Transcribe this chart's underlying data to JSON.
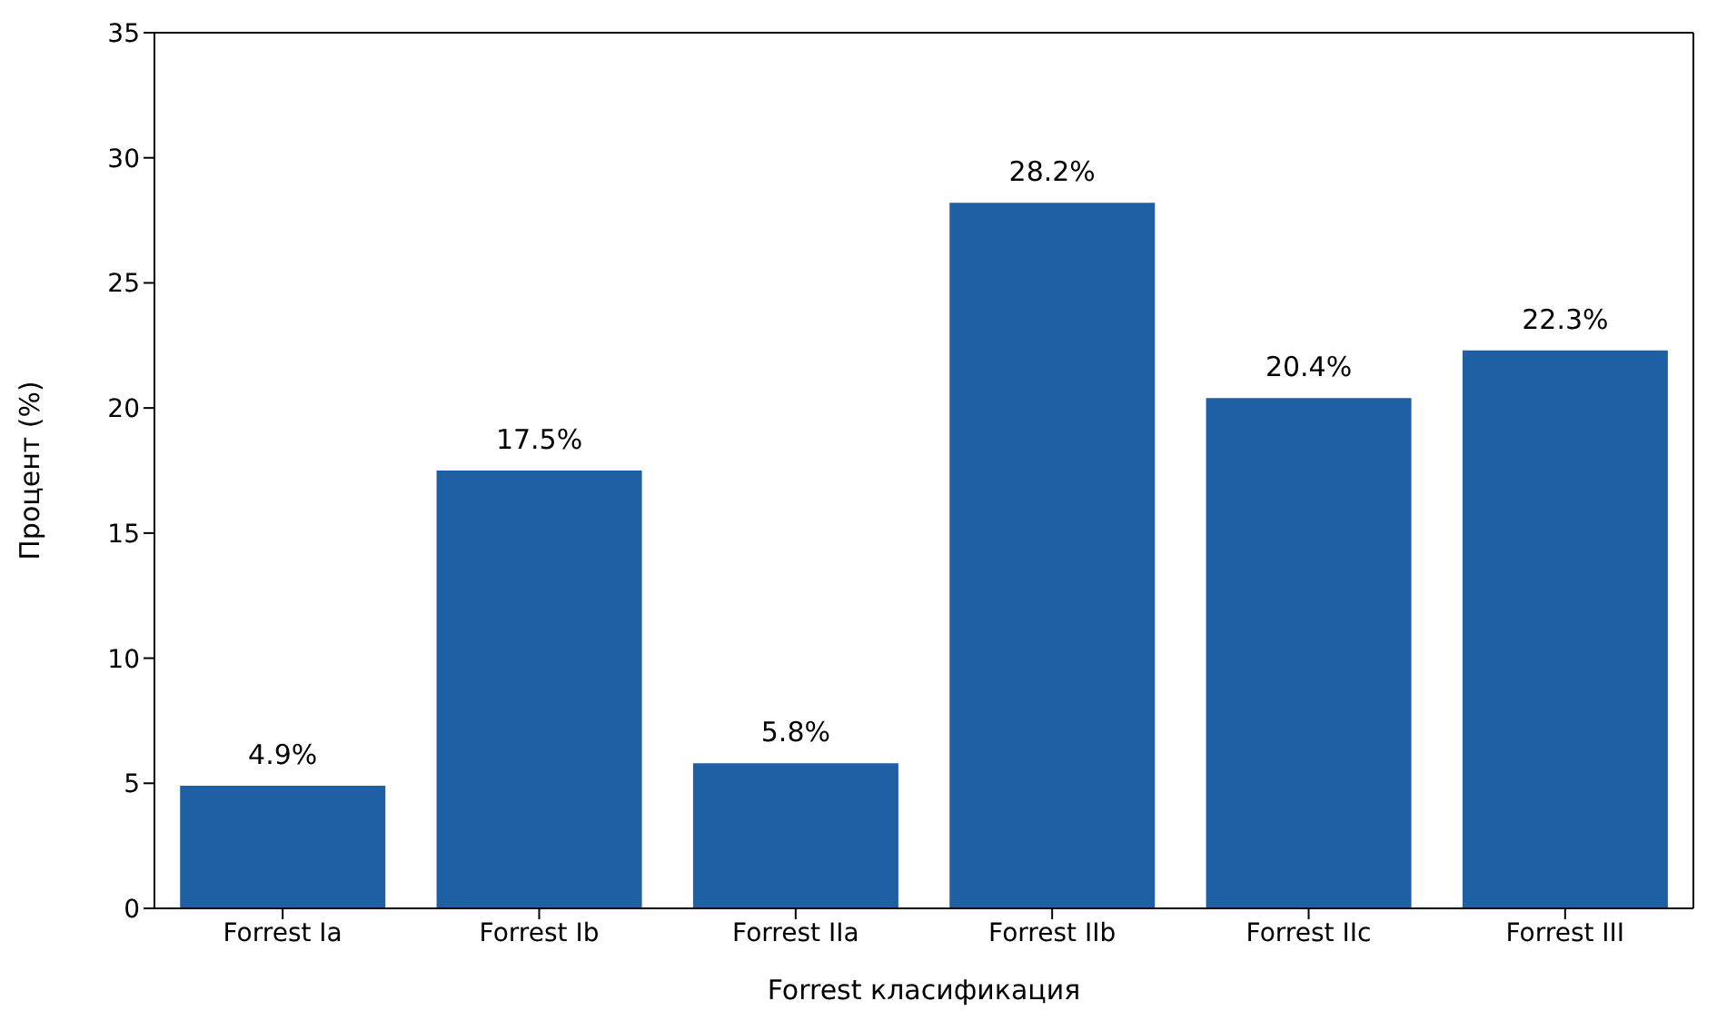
{
  "chart_data": {
    "type": "bar",
    "xlabel": "Forrest класификация",
    "ylabel": "Процент (%)",
    "categories": [
      "Forrest Ia",
      "Forrest Ib",
      "Forrest IIa",
      "Forrest IIb",
      "Forrest IIc",
      "Forrest III"
    ],
    "values": [
      4.9,
      17.5,
      5.8,
      28.2,
      20.4,
      22.3
    ],
    "value_labels": [
      "4.9%",
      "17.5%",
      "5.8%",
      "28.2%",
      "20.4%",
      "22.3%"
    ],
    "color": "#1f5fa3",
    "ylim": [
      0,
      35
    ],
    "yticks": [
      0,
      5,
      10,
      15,
      20,
      25,
      30,
      35
    ],
    "grid": false
  }
}
